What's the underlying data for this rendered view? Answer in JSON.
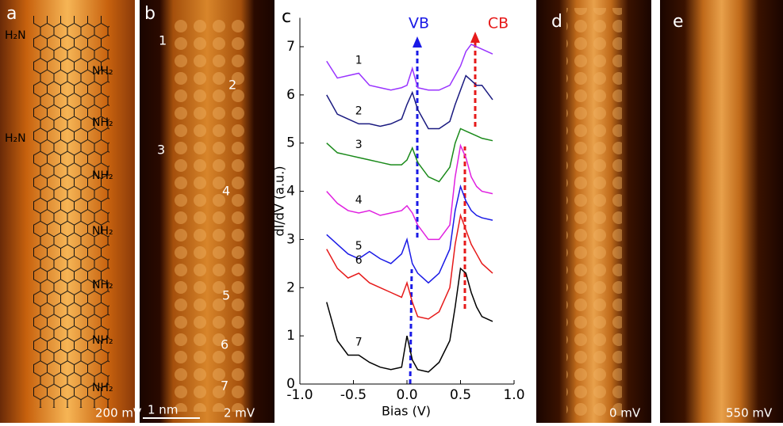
{
  "panels": {
    "a": {
      "label": "a",
      "bias": "200 mV",
      "left_groups": [
        "H₂N",
        "H₂N"
      ],
      "right_groups": [
        "NH₂",
        "NH₂",
        "NH₂",
        "NH₂",
        "NH₂",
        "NH₂",
        "NH₂"
      ]
    },
    "b": {
      "label": "b",
      "sites": [
        "1",
        "2",
        "3",
        "4",
        "5",
        "6",
        "7"
      ],
      "scale": "1 nm",
      "bias": "2 mV"
    },
    "d": {
      "label": "d",
      "bias": "0 mV"
    },
    "e": {
      "label": "e",
      "bias": "550 mV"
    }
  },
  "chart_data": {
    "type": "line",
    "panel_label": "c",
    "x_label": "Bias (V)",
    "y_label": "dI/dV (a.u.)",
    "annotations": [
      "VB",
      "CB"
    ],
    "x": [
      -0.75,
      -0.65,
      -0.55,
      -0.45,
      -0.35,
      -0.25,
      -0.15,
      -0.05,
      0.0,
      0.05,
      0.1,
      0.2,
      0.3,
      0.4,
      0.45,
      0.5,
      0.55,
      0.6,
      0.65,
      0.7,
      0.8
    ],
    "series": [
      {
        "name": "1",
        "color": "#9933ff",
        "values": [
          6.7,
          6.35,
          6.4,
          6.45,
          6.2,
          6.15,
          6.1,
          6.15,
          6.2,
          6.55,
          6.15,
          6.1,
          6.1,
          6.2,
          6.4,
          6.6,
          6.9,
          7.05,
          7.0,
          6.95,
          6.85
        ]
      },
      {
        "name": "2",
        "color": "#1a1a80",
        "values": [
          6.0,
          5.6,
          5.5,
          5.4,
          5.4,
          5.35,
          5.4,
          5.5,
          5.8,
          6.05,
          5.7,
          5.3,
          5.3,
          5.45,
          5.8,
          6.1,
          6.4,
          6.3,
          6.2,
          6.2,
          5.9
        ]
      },
      {
        "name": "3",
        "color": "#1a8a1a",
        "values": [
          5.0,
          4.8,
          4.75,
          4.7,
          4.65,
          4.6,
          4.55,
          4.55,
          4.65,
          4.9,
          4.6,
          4.3,
          4.2,
          4.5,
          5.0,
          5.3,
          5.25,
          5.2,
          5.15,
          5.1,
          5.05
        ]
      },
      {
        "name": "4",
        "color": "#e020e0",
        "values": [
          4.0,
          3.75,
          3.6,
          3.55,
          3.6,
          3.5,
          3.55,
          3.6,
          3.7,
          3.55,
          3.3,
          3.0,
          3.0,
          3.3,
          4.3,
          4.95,
          4.7,
          4.3,
          4.1,
          4.0,
          3.95
        ]
      },
      {
        "name": "5",
        "color": "#1a1ae6",
        "values": [
          3.1,
          2.9,
          2.7,
          2.6,
          2.75,
          2.6,
          2.5,
          2.7,
          3.0,
          2.5,
          2.3,
          2.1,
          2.3,
          2.8,
          3.6,
          4.1,
          3.8,
          3.6,
          3.5,
          3.45,
          3.4
        ]
      },
      {
        "name": "6",
        "color": "#e61a1a",
        "values": [
          2.8,
          2.4,
          2.2,
          2.3,
          2.1,
          2.0,
          1.9,
          1.8,
          2.1,
          1.7,
          1.4,
          1.35,
          1.5,
          2.0,
          2.9,
          3.5,
          3.2,
          2.9,
          2.7,
          2.5,
          2.3
        ]
      },
      {
        "name": "7",
        "color": "#000000",
        "values": [
          1.7,
          0.9,
          0.6,
          0.6,
          0.45,
          0.35,
          0.3,
          0.35,
          1.0,
          0.5,
          0.3,
          0.25,
          0.45,
          0.9,
          1.6,
          2.4,
          2.3,
          1.9,
          1.6,
          1.4,
          1.3
        ]
      }
    ],
    "xlim": [
      -1.0,
      1.0
    ],
    "ylim": [
      0,
      7.6
    ],
    "xticks": [
      {
        "value": -1.0,
        "label": "-1.0"
      },
      -0.5,
      {
        "value": 0,
        "label": "0.0"
      },
      0.5,
      {
        "value": 1.0,
        "label": "1.0"
      }
    ],
    "yticks": [
      0,
      1,
      2,
      3,
      4,
      5,
      6,
      7
    ]
  }
}
